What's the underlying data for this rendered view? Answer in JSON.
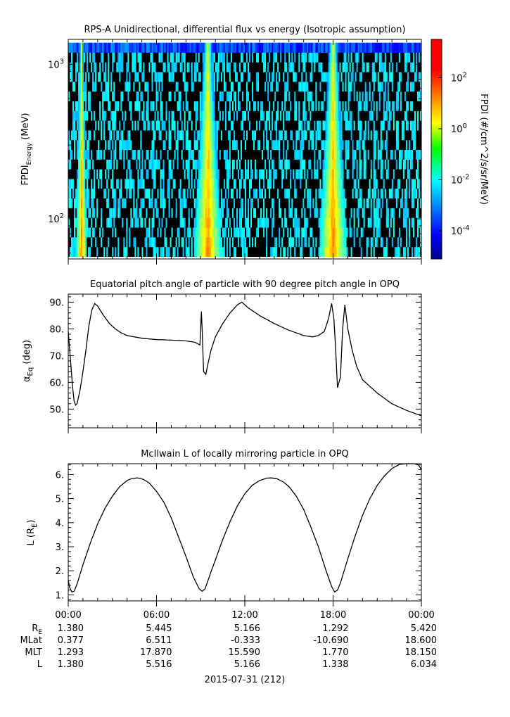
{
  "chart_data": [
    {
      "type": "heatmap",
      "title": "RPS-A Unidirectional, differential flux vs energy (Isotropic assumption)",
      "ylabel_main": "FPDI",
      "ylabel_sub": "Energy",
      "ylabel_unit": "(MeV)",
      "yscale": "log",
      "ylim": [
        55,
        1450
      ],
      "y_ticks": [
        {
          "value": 100,
          "base": "10",
          "exp": "2"
        },
        {
          "value": 1000,
          "base": "10",
          "exp": "3"
        }
      ],
      "x_hours": [
        0,
        24
      ],
      "colorbar": {
        "label": "FPDI (#/cm^2/s/sr/MeV)",
        "scale": "log",
        "range_exp": [
          -5.1,
          3.5
        ],
        "ticks": [
          {
            "value": 0.0001,
            "base": "10",
            "exp": "-4"
          },
          {
            "value": 0.01,
            "base": "10",
            "exp": "-2"
          },
          {
            "value": 1,
            "base": "10",
            "exp": "0"
          },
          {
            "value": 100,
            "base": "10",
            "exp": "2"
          }
        ]
      },
      "flux_bands_hours": [
        [
          0.5,
          1.3
        ],
        [
          8.5,
          10.5
        ],
        [
          17.0,
          19.0
        ]
      ]
    },
    {
      "type": "line",
      "title": "Equatorial pitch angle of particle with 90 degree pitch angle in OPQ",
      "ylabel_base": "α",
      "ylabel_sub": "Eq",
      "ylabel_unit": "(deg)",
      "ylim": [
        43,
        93
      ],
      "y_ticks": [
        50,
        60,
        70,
        80,
        90
      ],
      "y_tick_labels": [
        "50.",
        "60.",
        "70.",
        "80.",
        "90."
      ],
      "x_hours": [
        0,
        24
      ],
      "series": [
        {
          "x": [
            0,
            0.1,
            0.2,
            0.3,
            0.4,
            0.5,
            0.6,
            0.8,
            1.0,
            1.2,
            1.4,
            1.6,
            1.8,
            2.0,
            2.4,
            2.8,
            3.2,
            3.6,
            4.0,
            5.0,
            6.0,
            7.0,
            8.0,
            8.6,
            8.95,
            9.05,
            9.1,
            9.2,
            9.35,
            9.5,
            9.7,
            10.0,
            10.5,
            11.0,
            11.5,
            11.8,
            12.2,
            13.0,
            14.0,
            15.0,
            16.0,
            16.6,
            17.0,
            17.4,
            17.7,
            17.9,
            18.05,
            18.15,
            18.3,
            18.5,
            18.65,
            18.8,
            19.0,
            19.3,
            19.6,
            20.0,
            21.0,
            22.0,
            23.0,
            24.0
          ],
          "y": [
            79,
            72,
            65,
            58,
            53,
            51.5,
            52,
            57,
            64,
            72,
            81,
            87,
            89.5,
            88.5,
            85,
            82,
            80,
            78.5,
            77.5,
            76.5,
            76,
            75.8,
            75.5,
            75,
            74,
            86.5,
            80,
            64,
            63,
            67,
            72,
            77,
            82,
            86,
            89,
            90,
            88,
            85,
            82,
            79.5,
            77.5,
            77,
            77.5,
            79,
            84,
            89.5,
            84,
            75,
            58,
            62,
            80,
            89,
            80,
            72,
            66,
            61,
            56,
            52,
            49.5,
            47.5
          ]
        }
      ]
    },
    {
      "type": "line",
      "title": "McIlwain L of locally mirroring particle in OPQ",
      "ylabel_base": "L (R",
      "ylabel_sub": "E",
      "ylabel_unit": ")",
      "ylim": [
        0.75,
        6.45
      ],
      "y_ticks": [
        1,
        2,
        3,
        4,
        5,
        6
      ],
      "y_tick_labels": [
        "1.",
        "2.",
        "3.",
        "4.",
        "5.",
        "6."
      ],
      "x_hours": [
        0,
        24
      ],
      "series": [
        {
          "x": [
            0,
            0.1,
            0.25,
            0.4,
            0.6,
            0.8,
            1.0,
            1.5,
            2.0,
            2.5,
            3.0,
            3.5,
            4.0,
            4.3,
            4.7,
            5.1,
            5.5,
            6.0,
            6.5,
            7.0,
            7.5,
            8.0,
            8.5,
            8.9,
            9.1,
            9.3,
            9.5,
            9.7,
            10.0,
            10.5,
            11.0,
            11.5,
            12.0,
            12.5,
            13.0,
            13.5,
            13.8,
            14.2,
            14.6,
            15.0,
            15.5,
            16.0,
            16.5,
            17.0,
            17.5,
            17.9,
            18.1,
            18.3,
            18.5,
            18.7,
            19.0,
            19.5,
            20.0,
            20.5,
            21.0,
            21.5,
            22.0,
            22.5,
            23.0,
            23.5,
            23.8,
            24.0
          ],
          "y": [
            1.6,
            1.3,
            1.12,
            1.15,
            1.45,
            1.85,
            2.25,
            3.15,
            3.95,
            4.6,
            5.1,
            5.5,
            5.75,
            5.83,
            5.86,
            5.8,
            5.65,
            5.3,
            4.85,
            4.2,
            3.4,
            2.6,
            1.75,
            1.25,
            1.15,
            1.25,
            1.6,
            1.95,
            2.45,
            3.3,
            4.05,
            4.7,
            5.2,
            5.55,
            5.75,
            5.85,
            5.86,
            5.82,
            5.7,
            5.5,
            5.1,
            4.55,
            3.8,
            3.0,
            2.05,
            1.35,
            1.12,
            1.2,
            1.5,
            1.9,
            2.5,
            3.45,
            4.3,
            5.0,
            5.55,
            5.95,
            6.25,
            6.42,
            6.45,
            6.45,
            6.4,
            6.2
          ]
        }
      ]
    }
  ],
  "x_axis": {
    "tick_labels": [
      "00:00",
      "06:00",
      "12:00",
      "18:00",
      "00:00"
    ],
    "tick_hours": [
      0,
      6,
      12,
      18,
      24
    ],
    "date_label": "2015-07-31 (212)"
  },
  "ephemeris": {
    "rows": [
      {
        "label": "R",
        "label_sub": "E",
        "values": [
          "1.380",
          "5.445",
          "5.166",
          "1.292",
          "5.420"
        ]
      },
      {
        "label": "MLat",
        "label_sub": "",
        "values": [
          "0.377",
          "6.511",
          "-0.333",
          "-10.690",
          "18.600"
        ]
      },
      {
        "label": "MLT",
        "label_sub": "",
        "values": [
          "1.293",
          "17.870",
          "15.590",
          "1.770",
          "18.150"
        ]
      },
      {
        "label": "L",
        "label_sub": "",
        "values": [
          "1.380",
          "5.516",
          "5.166",
          "1.338",
          "6.034"
        ]
      }
    ]
  }
}
